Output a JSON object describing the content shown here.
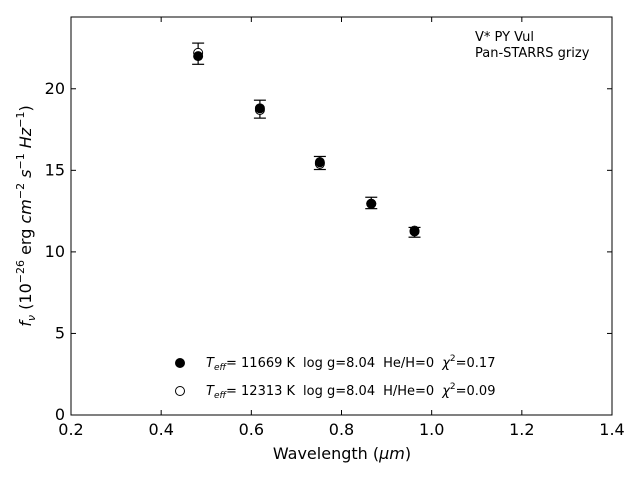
{
  "chart_data": {
    "type": "scatter",
    "annotation_lines": [
      "V* PY Vul",
      "Pan-STARRS grizy"
    ],
    "xlim": [
      0.2,
      1.4
    ],
    "ylim": [
      0,
      24.4
    ],
    "xticks": [
      0.2,
      0.4,
      0.6,
      0.8,
      1.0,
      1.2,
      1.4
    ],
    "xtick_labels": [
      "0.2",
      "0.4",
      "0.6",
      "0.8",
      "1.0",
      "1.2",
      "1.4"
    ],
    "yticks": [
      0,
      5,
      10,
      15,
      20
    ],
    "ytick_labels": [
      "0",
      "5",
      "10",
      "15",
      "20"
    ],
    "xlabel": {
      "prefix": "Wavelength (",
      "unit": "μm",
      "suffix": ")"
    },
    "ylabel": {
      "f": "f",
      "sub": "ν",
      "open": " (10",
      "exp1": "−26",
      "mid": " erg ",
      "cm": "cm",
      "exp2": "−2",
      "s": " s",
      "exp3": "−1",
      "hz": " Hz",
      "exp4": "−1",
      "close": ")"
    },
    "grid": false,
    "series": [
      {
        "marker": "filled",
        "label": {
          "teff_T": "T",
          "teff_sub": "eff",
          "teff_val": "= 11669 K",
          "logg": "log g=8.04",
          "comp": "He/H=0",
          "chi": "χ",
          "chi_exp": "2",
          "chi_val": "=0.17"
        },
        "x": [
          0.482,
          0.619,
          0.752,
          0.866,
          0.962
        ],
        "y": [
          22.0,
          18.8,
          15.5,
          12.95,
          11.25
        ]
      },
      {
        "marker": "open",
        "label": {
          "teff_T": "T",
          "teff_sub": "eff",
          "teff_val": "= 12313 K",
          "logg": "log g=8.04",
          "comp": "H/He=0",
          "chi": "χ",
          "chi_exp": "2",
          "chi_val": "=0.09"
        },
        "x": [
          0.482,
          0.619,
          0.752,
          0.866,
          0.962
        ],
        "y": [
          22.2,
          18.7,
          15.4,
          12.95,
          11.3
        ]
      }
    ],
    "observed": {
      "x": [
        0.482,
        0.619,
        0.752,
        0.866,
        0.962
      ],
      "y": [
        22.15,
        18.75,
        15.45,
        13.0,
        11.2
      ],
      "yerr": [
        0.65,
        0.55,
        0.4,
        0.35,
        0.3
      ]
    }
  }
}
